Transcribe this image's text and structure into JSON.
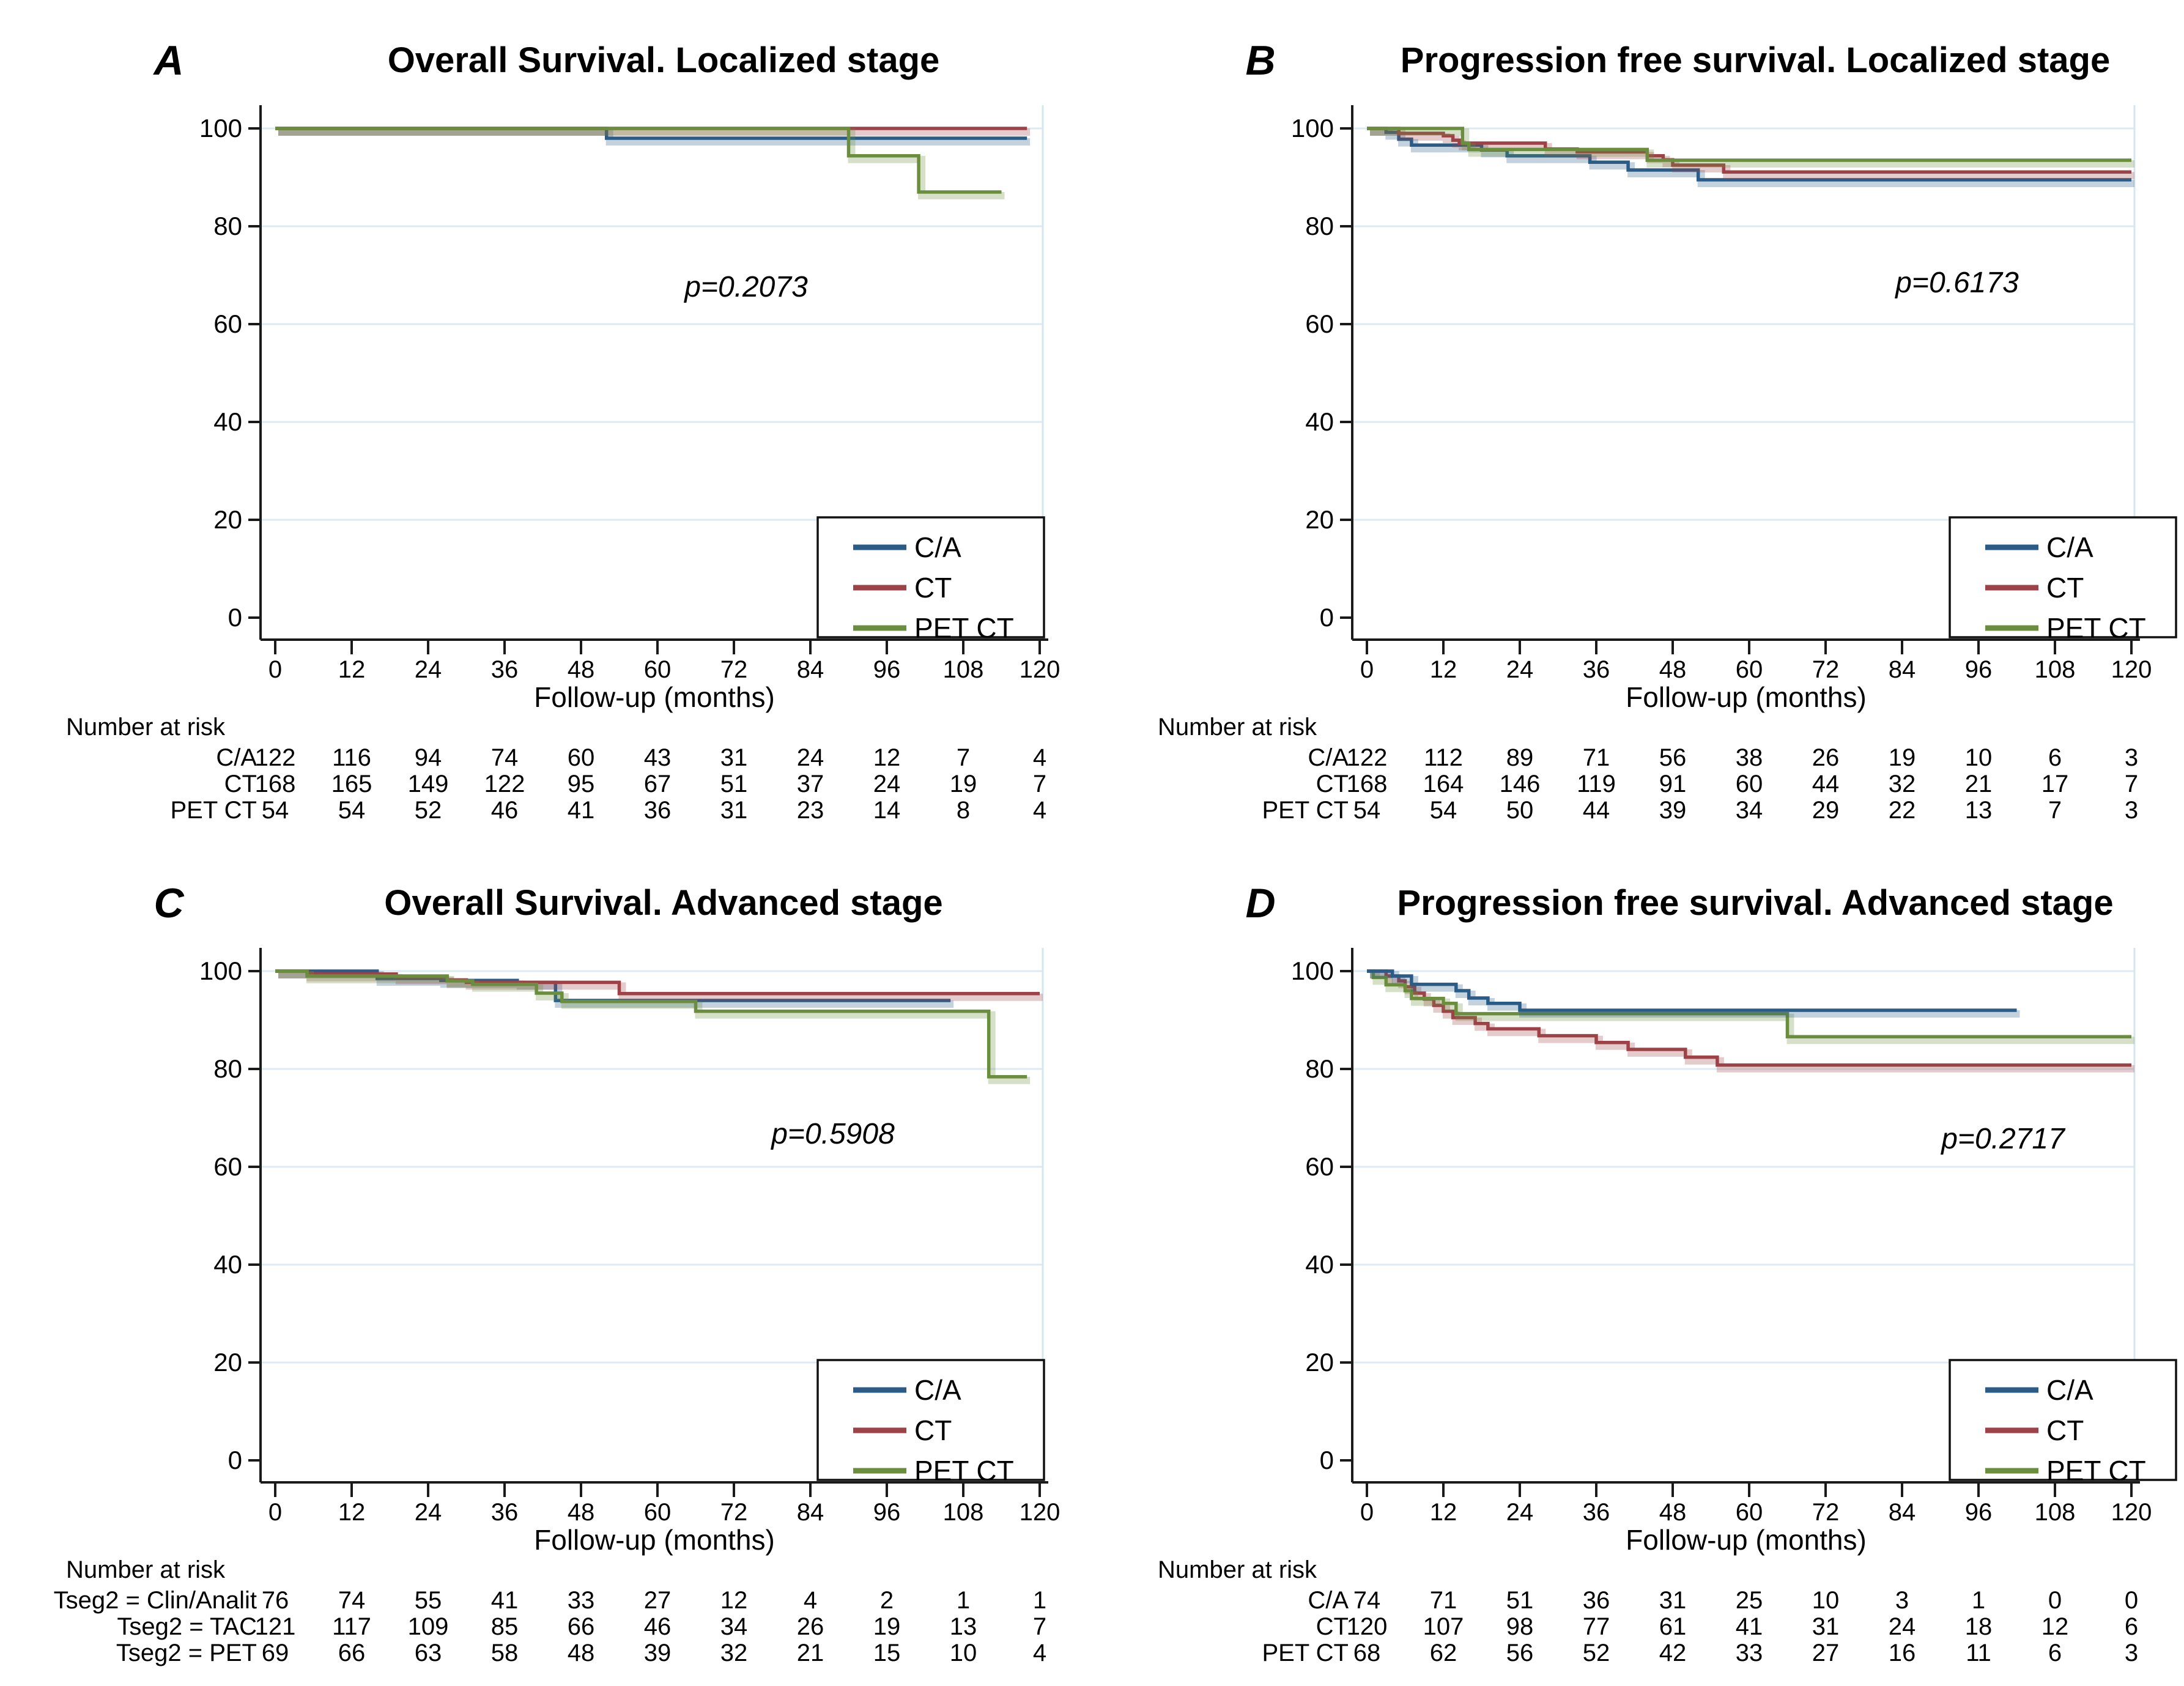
{
  "figure": {
    "background": "#ffffff",
    "axis_color": "#1a1a1a",
    "grid_color": "#dcebf2",
    "border_color": "#d5e6ef"
  },
  "chart_data": [
    {
      "id": "A",
      "type": "line",
      "subtype": "kaplan-meier-step",
      "title": "Overall Survival. Localized stage",
      "p_value": "p=0.2073",
      "xlabel": "Follow-up (months)",
      "x_ticks": [
        0,
        12,
        24,
        36,
        48,
        60,
        72,
        84,
        96,
        108,
        120
      ],
      "y_ticks": [
        0,
        20,
        40,
        60,
        80,
        100
      ],
      "xlim": [
        0,
        120
      ],
      "ylim": [
        0,
        100
      ],
      "grid": true,
      "legend_position": "lower-right",
      "legend": [
        {
          "label": "C/A",
          "color": "#2a5c87"
        },
        {
          "label": "CT",
          "color": "#9d4348"
        },
        {
          "label": "PET CT",
          "color": "#6b8e3e"
        }
      ],
      "series": [
        {
          "name": "C/A",
          "color": "#2a5c87",
          "steps": [
            [
              0,
              100
            ],
            [
              52,
              100
            ],
            [
              52,
              98
            ],
            [
              118,
              98
            ]
          ]
        },
        {
          "name": "CT",
          "color": "#9d4348",
          "steps": [
            [
              0,
              100
            ],
            [
              118,
              100
            ]
          ]
        },
        {
          "name": "PET CT",
          "color": "#6b8e3e",
          "steps": [
            [
              0,
              100
            ],
            [
              90,
              100
            ],
            [
              90,
              94.4
            ],
            [
              101,
              94.4
            ],
            [
              101,
              87
            ],
            [
              114,
              87
            ]
          ]
        }
      ],
      "risk_header": "Number at risk",
      "risk_rows": [
        {
          "label": "C/A",
          "values": [
            122,
            116,
            94,
            74,
            60,
            43,
            31,
            24,
            12,
            7,
            4
          ]
        },
        {
          "label": "CT",
          "values": [
            168,
            165,
            149,
            122,
            95,
            67,
            51,
            37,
            24,
            19,
            7
          ]
        },
        {
          "label": "PET CT",
          "values": [
            54,
            54,
            52,
            46,
            41,
            36,
            31,
            23,
            14,
            8,
            4
          ]
        }
      ]
    },
    {
      "id": "B",
      "type": "line",
      "subtype": "kaplan-meier-step",
      "title": "Progression free survival. Localized stage",
      "p_value": "p=0.6173",
      "xlabel": "Follow-up (months)",
      "x_ticks": [
        0,
        12,
        24,
        36,
        48,
        60,
        72,
        84,
        96,
        108,
        120
      ],
      "y_ticks": [
        0,
        20,
        40,
        60,
        80,
        100
      ],
      "xlim": [
        0,
        120
      ],
      "ylim": [
        0,
        100
      ],
      "grid": true,
      "legend_position": "lower-right",
      "legend": [
        {
          "label": "C/A",
          "color": "#2a5c87"
        },
        {
          "label": "CT",
          "color": "#9d4348"
        },
        {
          "label": "PET CT",
          "color": "#6b8e3e"
        }
      ],
      "series": [
        {
          "name": "C/A",
          "color": "#2a5c87",
          "steps": [
            [
              0,
              100
            ],
            [
              3,
              100
            ],
            [
              3,
              99.2
            ],
            [
              5,
              99.2
            ],
            [
              5,
              97.8
            ],
            [
              7,
              97.8
            ],
            [
              7,
              96.6
            ],
            [
              18,
              96.6
            ],
            [
              18,
              95.6
            ],
            [
              22,
              95.6
            ],
            [
              22,
              94.4
            ],
            [
              35,
              94.4
            ],
            [
              35,
              93.1
            ],
            [
              41,
              93.1
            ],
            [
              41,
              91.5
            ],
            [
              52,
              91.5
            ],
            [
              52,
              89.5
            ],
            [
              120,
              89.5
            ]
          ]
        },
        {
          "name": "CT",
          "color": "#9d4348",
          "steps": [
            [
              0,
              100
            ],
            [
              5,
              100
            ],
            [
              5,
              99
            ],
            [
              12,
              99
            ],
            [
              12,
              98.5
            ],
            [
              13.5,
              98.5
            ],
            [
              13.5,
              97.6
            ],
            [
              14.5,
              97.6
            ],
            [
              14.5,
              97
            ],
            [
              28,
              97
            ],
            [
              28,
              95.8
            ],
            [
              33,
              95.8
            ],
            [
              33,
              95.2
            ],
            [
              44,
              95.2
            ],
            [
              44,
              94.4
            ],
            [
              46.5,
              94.4
            ],
            [
              46.5,
              93.6
            ],
            [
              48,
              93.6
            ],
            [
              48,
              92.5
            ],
            [
              56,
              92.5
            ],
            [
              56,
              91.1
            ],
            [
              120,
              91.1
            ]
          ]
        },
        {
          "name": "PET CT",
          "color": "#6b8e3e",
          "steps": [
            [
              0,
              100
            ],
            [
              15,
              100
            ],
            [
              15,
              97
            ],
            [
              16,
              97
            ],
            [
              16,
              95.7
            ],
            [
              44,
              95.7
            ],
            [
              44,
              93.5
            ],
            [
              120,
              93.5
            ]
          ]
        }
      ],
      "risk_header": "Number at risk",
      "risk_rows": [
        {
          "label": "C/A",
          "values": [
            122,
            112,
            89,
            71,
            56,
            38,
            26,
            19,
            10,
            6,
            3
          ]
        },
        {
          "label": "CT",
          "values": [
            168,
            164,
            146,
            119,
            91,
            60,
            44,
            32,
            21,
            17,
            7
          ]
        },
        {
          "label": "PET CT",
          "values": [
            54,
            54,
            50,
            44,
            39,
            34,
            29,
            22,
            13,
            7,
            3
          ]
        }
      ]
    },
    {
      "id": "C",
      "type": "line",
      "subtype": "kaplan-meier-step",
      "title": "Overall Survival. Advanced stage",
      "p_value": "p=0.5908",
      "xlabel": "Follow-up (months)",
      "x_ticks": [
        0,
        12,
        24,
        36,
        48,
        60,
        72,
        84,
        96,
        108,
        120
      ],
      "y_ticks": [
        0,
        20,
        40,
        60,
        80,
        100
      ],
      "xlim": [
        0,
        120
      ],
      "ylim": [
        0,
        100
      ],
      "grid": true,
      "legend_position": "lower-right",
      "legend": [
        {
          "label": "C/A",
          "color": "#2a5c87"
        },
        {
          "label": "CT",
          "color": "#9d4348"
        },
        {
          "label": "PET CT",
          "color": "#6b8e3e"
        }
      ],
      "series": [
        {
          "name": "C/A",
          "color": "#2a5c87",
          "steps": [
            [
              0,
              100
            ],
            [
              16,
              100
            ],
            [
              16,
              98.5
            ],
            [
              26,
              98.5
            ],
            [
              26,
              98.1
            ],
            [
              38,
              98.1
            ],
            [
              38,
              97.7
            ],
            [
              44,
              97.7
            ],
            [
              44,
              94
            ],
            [
              106,
              94
            ]
          ]
        },
        {
          "name": "CT",
          "color": "#9d4348",
          "steps": [
            [
              0,
              100
            ],
            [
              5,
              100
            ],
            [
              5,
              99.4
            ],
            [
              19,
              99.4
            ],
            [
              19,
              98.8
            ],
            [
              27,
              98.8
            ],
            [
              27,
              98.2
            ],
            [
              30,
              98.2
            ],
            [
              30,
              97.7
            ],
            [
              54,
              97.7
            ],
            [
              54,
              95.4
            ],
            [
              120,
              95.4
            ]
          ]
        },
        {
          "name": "PET CT",
          "color": "#6b8e3e",
          "steps": [
            [
              0,
              100
            ],
            [
              5,
              100
            ],
            [
              5,
              99
            ],
            [
              27,
              99
            ],
            [
              27,
              98
            ],
            [
              31,
              98
            ],
            [
              31,
              97.3
            ],
            [
              41,
              97.3
            ],
            [
              41,
              95.5
            ],
            [
              45,
              95.5
            ],
            [
              45,
              93.8
            ],
            [
              66,
              93.8
            ],
            [
              66,
              91.8
            ],
            [
              112,
              91.8
            ],
            [
              112,
              78.4
            ],
            [
              118,
              78.4
            ]
          ]
        }
      ],
      "risk_header": "Number at risk",
      "risk_rows": [
        {
          "label": "Tseg2 = Clin/Analit",
          "values": [
            76,
            74,
            55,
            41,
            33,
            27,
            12,
            4,
            2,
            1,
            1
          ]
        },
        {
          "label": "Tseg2 = TAC",
          "values": [
            121,
            117,
            109,
            85,
            66,
            46,
            34,
            26,
            19,
            13,
            7
          ]
        },
        {
          "label": "Tseg2 = PET",
          "values": [
            69,
            66,
            63,
            58,
            48,
            39,
            32,
            21,
            15,
            10,
            4
          ]
        }
      ]
    },
    {
      "id": "D",
      "type": "line",
      "subtype": "kaplan-meier-step",
      "title": "Progression free survival. Advanced stage",
      "p_value": "p=0.2717",
      "xlabel": "Follow-up (months)",
      "x_ticks": [
        0,
        12,
        24,
        36,
        48,
        60,
        72,
        84,
        96,
        108,
        120
      ],
      "y_ticks": [
        0,
        20,
        40,
        60,
        80,
        100
      ],
      "xlim": [
        0,
        120
      ],
      "ylim": [
        0,
        100
      ],
      "grid": true,
      "legend_position": "lower-right",
      "legend": [
        {
          "label": "C/A",
          "color": "#2a5c87"
        },
        {
          "label": "CT",
          "color": "#9d4348"
        },
        {
          "label": "PET CT",
          "color": "#6b8e3e"
        }
      ],
      "series": [
        {
          "name": "CT",
          "color": "#9d4348",
          "steps": [
            [
              0,
              100
            ],
            [
              3,
              100
            ],
            [
              3,
              99
            ],
            [
              5,
              99
            ],
            [
              5,
              98
            ],
            [
              6,
              98
            ],
            [
              6,
              96.8
            ],
            [
              7.5,
              96.8
            ],
            [
              7.5,
              95.5
            ],
            [
              9,
              95.5
            ],
            [
              9,
              94.3
            ],
            [
              10.5,
              94.3
            ],
            [
              10.5,
              93
            ],
            [
              12,
              93
            ],
            [
              12,
              91.8
            ],
            [
              13.5,
              91.8
            ],
            [
              13.5,
              90.5
            ],
            [
              17,
              90.5
            ],
            [
              17,
              89.3
            ],
            [
              19,
              89.3
            ],
            [
              19,
              88.2
            ],
            [
              27,
              88.2
            ],
            [
              27,
              86.8
            ],
            [
              36,
              86.8
            ],
            [
              36,
              85.4
            ],
            [
              41,
              85.4
            ],
            [
              41,
              84
            ],
            [
              50,
              84
            ],
            [
              50,
              82.4
            ],
            [
              55,
              82.4
            ],
            [
              55,
              80.8
            ],
            [
              120,
              80.8
            ]
          ]
        },
        {
          "name": "PET CT",
          "color": "#6b8e3e",
          "steps": [
            [
              0,
              100
            ],
            [
              1,
              100
            ],
            [
              1,
              98.7
            ],
            [
              3,
              98.7
            ],
            [
              3,
              97.2
            ],
            [
              6,
              97.2
            ],
            [
              6,
              96
            ],
            [
              7,
              96
            ],
            [
              7,
              94.4
            ],
            [
              12,
              94.4
            ],
            [
              12,
              93.4
            ],
            [
              14,
              93.4
            ],
            [
              14,
              91.3
            ],
            [
              66,
              91.3
            ],
            [
              66,
              86.6
            ],
            [
              120,
              86.6
            ]
          ]
        },
        {
          "name": "C/A",
          "color": "#2a5c87",
          "steps": [
            [
              0,
              100
            ],
            [
              4,
              100
            ],
            [
              4,
              99
            ],
            [
              7,
              99
            ],
            [
              7,
              97.3
            ],
            [
              14,
              97.3
            ],
            [
              14,
              96
            ],
            [
              16,
              96
            ],
            [
              16,
              94.5
            ],
            [
              19,
              94.5
            ],
            [
              19,
              93.4
            ],
            [
              24,
              93.4
            ],
            [
              24,
              92
            ],
            [
              102,
              92
            ]
          ]
        }
      ],
      "risk_header": "Number at risk",
      "risk_rows": [
        {
          "label": "C/A",
          "values": [
            74,
            71,
            51,
            36,
            31,
            25,
            10,
            3,
            1,
            0,
            0
          ]
        },
        {
          "label": "CT",
          "values": [
            120,
            107,
            98,
            77,
            61,
            41,
            31,
            24,
            18,
            12,
            6
          ]
        },
        {
          "label": "PET CT",
          "values": [
            68,
            62,
            56,
            52,
            42,
            33,
            27,
            16,
            11,
            6,
            3
          ]
        }
      ]
    }
  ]
}
